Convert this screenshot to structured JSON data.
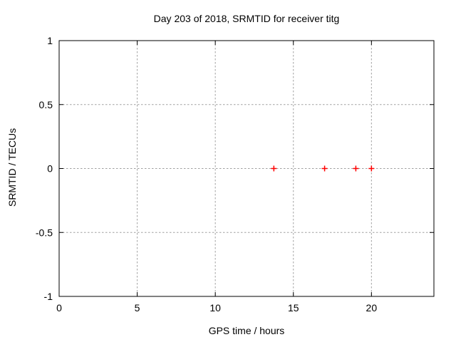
{
  "chart_data": {
    "type": "scatter",
    "title": "Day 203 of 2018, SRMTID for receiver titg",
    "xlabel": "GPS time / hours",
    "ylabel": "SRMTID / TECUs",
    "xlim": [
      0,
      24
    ],
    "ylim": [
      -1,
      1
    ],
    "x_tick_values": [
      0,
      5,
      10,
      15,
      20
    ],
    "x_tick_labels": [
      "0",
      "5",
      "10",
      "15",
      "20"
    ],
    "y_tick_values": [
      1,
      0.5,
      0,
      -0.5,
      -1
    ],
    "y_tick_labels": [
      "1",
      "0.5",
      "0",
      "-0.5",
      "-1"
    ],
    "grid": true,
    "grid_style": "dashed",
    "legend": false,
    "series": [
      {
        "name": "SRMTID",
        "marker": "plus",
        "color": "#ff0000",
        "x": [
          13.75,
          17,
          19,
          20
        ],
        "y": [
          0,
          0,
          0,
          0
        ]
      }
    ],
    "colors": {
      "axis": "#000000",
      "grid": "#a0a0a0",
      "text": "#000000",
      "background": "#ffffff"
    }
  }
}
